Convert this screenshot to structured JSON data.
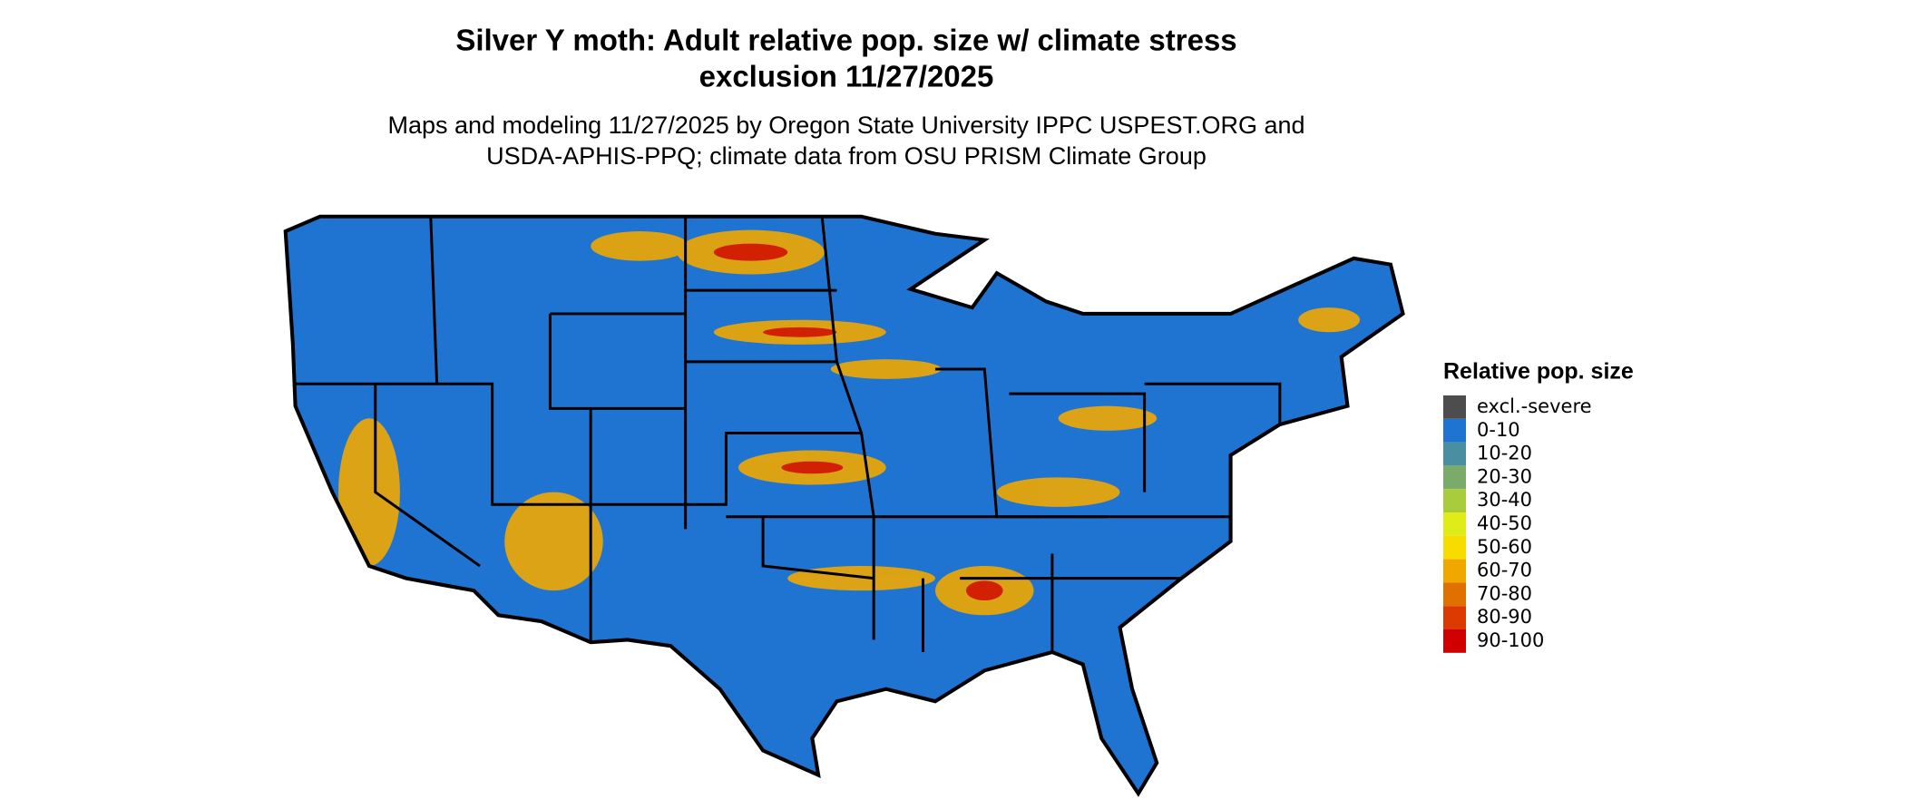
{
  "header": {
    "title": "Silver Y moth: Adult relative pop. size w/ climate stress",
    "title_line2": "exclusion 11/27/2025",
    "subtitle": "Maps and modeling 11/27/2025 by Oregon State University IPPC USPEST.ORG and",
    "subtitle_line2": "USDA-APHIS-PPQ; climate data from OSU PRISM Climate Group"
  },
  "legend": {
    "title": "Relative pop. size",
    "items": [
      {
        "label": "excl.-severe",
        "color": "#4d4d4d"
      },
      {
        "label": "0-10",
        "color": "#1f74d2"
      },
      {
        "label": "10-20",
        "color": "#4a8ea2"
      },
      {
        "label": "20-30",
        "color": "#7aab6a"
      },
      {
        "label": "30-40",
        "color": "#a8cc3c"
      },
      {
        "label": "40-50",
        "color": "#e0ec18"
      },
      {
        "label": "50-60",
        "color": "#f8dc00"
      },
      {
        "label": "60-70",
        "color": "#f0a800"
      },
      {
        "label": "70-80",
        "color": "#e07000"
      },
      {
        "label": "80-90",
        "color": "#dc3a00"
      },
      {
        "label": "90-100",
        "color": "#d00000"
      }
    ]
  }
}
